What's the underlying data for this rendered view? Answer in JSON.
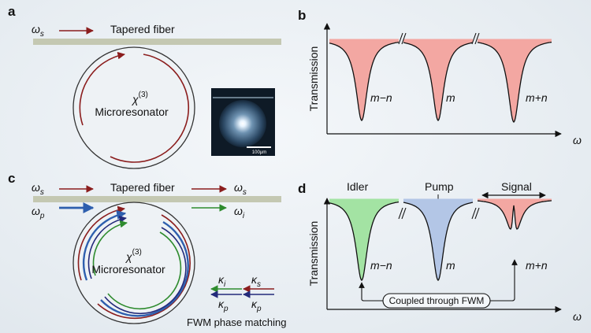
{
  "panel_a": {
    "letter": "a",
    "omega_s": "ω",
    "omega_s_sub": "s",
    "fiber_label": "Tapered fiber",
    "chi_main": "χ",
    "chi_sup": "(3)",
    "resonator_label": "Microresonator",
    "scale_bar_label": "100μm"
  },
  "panel_b": {
    "letter": "b",
    "ylabel": "Transmission",
    "xlabel": "ω",
    "dips": [
      "m−n",
      "m",
      "m+n"
    ]
  },
  "panel_c": {
    "letter": "c",
    "omega_s_in": "ω",
    "omega_s_in_sub": "s",
    "omega_p": "ω",
    "omega_p_sub": "p",
    "fiber_label": "Tapered fiber",
    "omega_s_out": "ω",
    "omega_s_out_sub": "s",
    "omega_i": "ω",
    "omega_i_sub": "i",
    "chi_main": "χ",
    "chi_sup": "(3)",
    "resonator_label": "Microresonator",
    "kappa_i": "κ",
    "kappa_i_sub": "i",
    "kappa_s": "κ",
    "kappa_s_sub": "s",
    "kappa_p1": "κ",
    "kappa_p1_sub": "p",
    "kappa_p2": "κ",
    "kappa_p2_sub": "p",
    "phase_matching_label": "FWM phase matching"
  },
  "panel_d": {
    "letter": "d",
    "ylabel": "Transmission",
    "xlabel": "ω",
    "idler_label": "Idler",
    "pump_label": "Pump",
    "signal_label": "Signal",
    "dips": [
      "m−n",
      "m",
      "m+n"
    ],
    "coupling_label": "Coupled through FWM"
  },
  "colors": {
    "fiber": "#c4c8b2",
    "red_arrow": "#8b1d1d",
    "blue_arrow": "#2e5fae",
    "green_arrow": "#2e8b2e",
    "navy_arrow": "#232a7a",
    "dip_red": "#f3a7a2",
    "dip_green": "#a3e3a3",
    "dip_blue": "#b3c6e6"
  }
}
